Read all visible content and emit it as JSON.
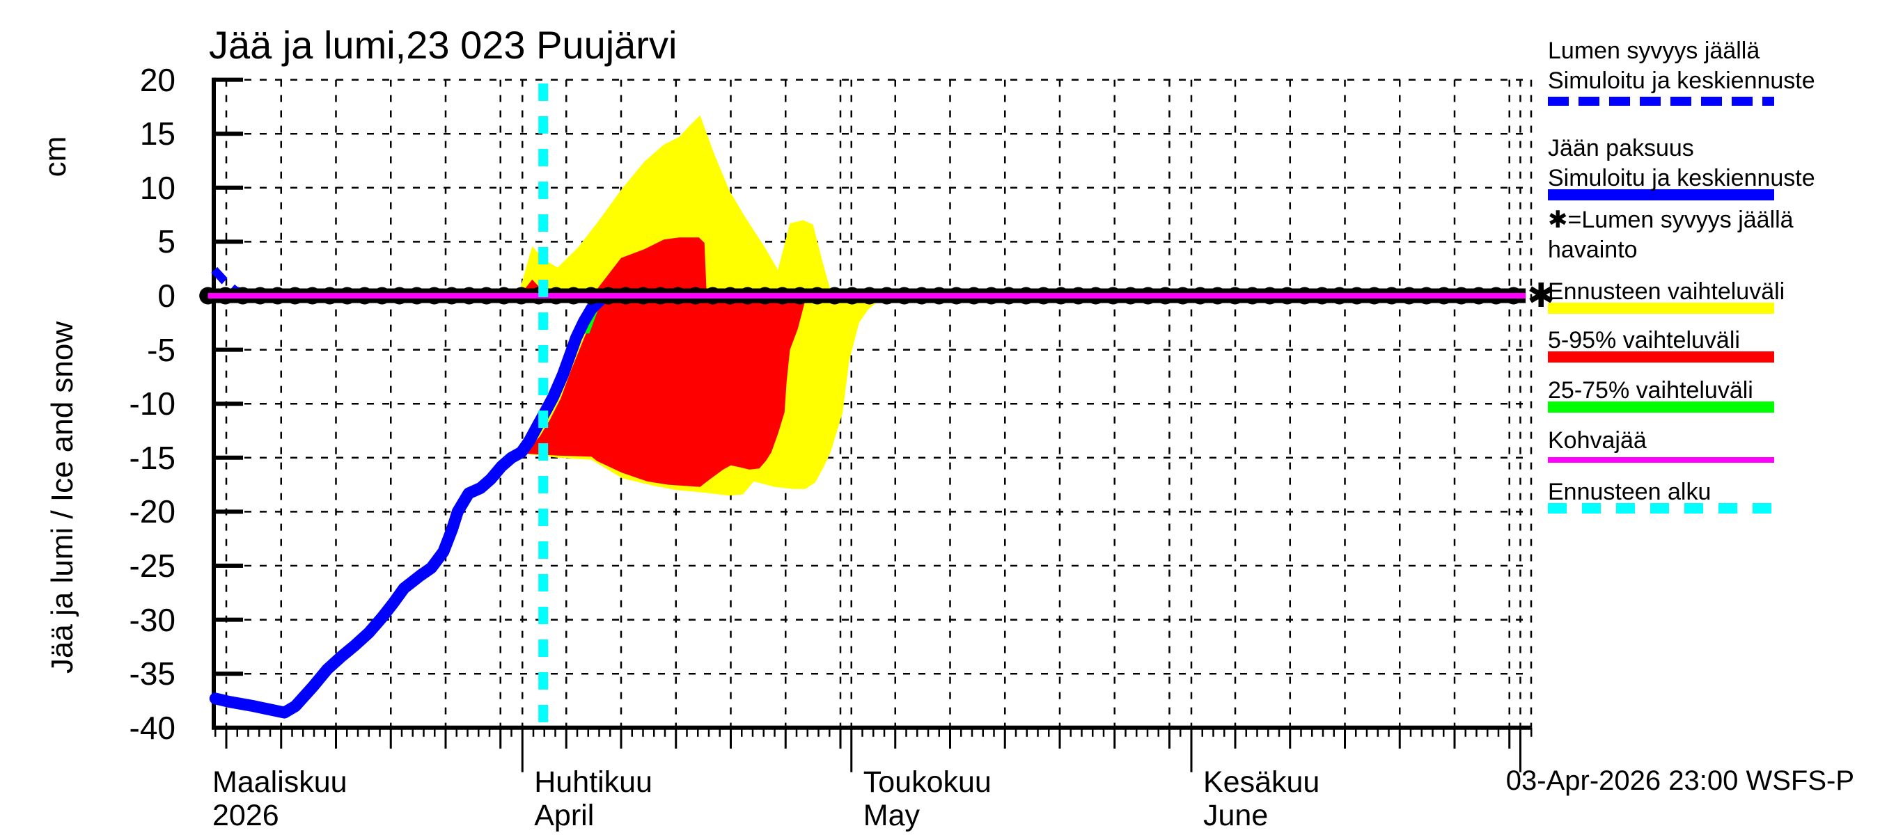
{
  "title": "Jää ja lumi,23 023 Puujärvi",
  "y_axis": {
    "label": "Jää ja lumi / Ice and snow",
    "unit": "cm",
    "tick_values": [
      20,
      15,
      10,
      5,
      0,
      -5,
      -10,
      -15,
      -20,
      -25,
      -30,
      -35,
      -40
    ]
  },
  "x_axis": {
    "start_date": "2026-03-01",
    "months": [
      {
        "name_fi": "Maaliskuu",
        "name_en": "2026",
        "day_offset": 0
      },
      {
        "name_fi": "Huhtikuu",
        "name_en": "April",
        "day_offset": 31
      },
      {
        "name_fi": "Toukokuu",
        "name_en": "May",
        "day_offset": 61
      },
      {
        "name_fi": "Kesäkuu",
        "name_en": "June",
        "day_offset": 92
      }
    ]
  },
  "footer_timestamp": "03-Apr-2026 23:00 WSFS-P",
  "colors": {
    "simulated_line": "#0000ff",
    "forecast_range": "#ffff00",
    "range_5_95": "#ff0000",
    "range_25_75": "#00ff00",
    "kohvajaa": "#ff00ff",
    "forecast_start": "#00ffff",
    "observation": "#000000"
  },
  "legend": [
    {
      "lines": [
        "Lumen syvyys jäällä",
        "Simuloitu ja keskiennuste"
      ],
      "sample": "dashed",
      "color": "#0000ff"
    },
    {
      "lines": [
        "Jään paksuus",
        "Simuloitu ja keskiennuste"
      ],
      "sample": "solid",
      "color": "#0000ff"
    },
    {
      "lines": [
        "✱=Lumen syvyys jäällä",
        "havainto"
      ],
      "sample": "none",
      "color": "#000000"
    },
    {
      "lines": [
        "Ennusteen vaihteluväli"
      ],
      "sample": "solid",
      "color": "#ffff00"
    },
    {
      "lines": [
        "5-95% vaihteluväli"
      ],
      "sample": "solid",
      "color": "#ff0000"
    },
    {
      "lines": [
        "25-75% vaihteluväli"
      ],
      "sample": "solid",
      "color": "#00ff00"
    },
    {
      "lines": [
        "Kohvajää"
      ],
      "sample": "thin",
      "color": "#ff00ff"
    },
    {
      "lines": [
        "Ennusteen alku"
      ],
      "sample": "dashed-wide",
      "color": "#00ffff"
    }
  ],
  "chart_data": {
    "type": "line",
    "title": "Jää ja lumi,23 023 Puujärvi",
    "x_unit": "days since 2026-03-01",
    "ylim": [
      -40,
      20
    ],
    "xlim_days": [
      2.9,
      123
    ],
    "grid": {
      "y_step_cm": 5,
      "x_step_days": 5
    },
    "forecast_start_day": 32.9,
    "ice_thickness_simulated": [
      [
        3.0,
        -37.3
      ],
      [
        4.3,
        -37.6
      ],
      [
        6.5,
        -38.0
      ],
      [
        9.3,
        -38.6
      ],
      [
        10.3,
        -38.0
      ],
      [
        11.9,
        -36.2
      ],
      [
        13.2,
        -34.6
      ],
      [
        14.5,
        -33.4
      ],
      [
        15.7,
        -32.4
      ],
      [
        17.0,
        -31.2
      ],
      [
        18.2,
        -29.8
      ],
      [
        19.2,
        -28.5
      ],
      [
        20.2,
        -27.1
      ],
      [
        21.7,
        -25.9
      ],
      [
        22.7,
        -25.2
      ],
      [
        23.8,
        -23.7
      ],
      [
        24.6,
        -21.6
      ],
      [
        25.1,
        -20.0
      ],
      [
        26.1,
        -18.3
      ],
      [
        27.2,
        -17.8
      ],
      [
        28.1,
        -17.0
      ],
      [
        29.1,
        -15.8
      ],
      [
        30.0,
        -15.0
      ],
      [
        30.9,
        -14.5
      ],
      [
        31.6,
        -13.5
      ],
      [
        32.4,
        -12.0
      ],
      [
        33.0,
        -10.9
      ],
      [
        33.8,
        -9.4
      ],
      [
        34.7,
        -7.3
      ],
      [
        35.3,
        -5.6
      ],
      [
        35.9,
        -3.9
      ],
      [
        36.6,
        -2.4
      ],
      [
        37.3,
        -1.2
      ],
      [
        38.1,
        -0.4
      ]
    ],
    "snow_depth_on_ice_simulated_start": [
      [
        2.9,
        2.4
      ],
      [
        3.8,
        1.4
      ],
      [
        4.8,
        0.5
      ],
      [
        6.0,
        0.1
      ]
    ],
    "snow_depth_observations": {
      "value_cm": 0,
      "from_day": 2.9,
      "to_day": 122.8
    },
    "kohvajaa_level": {
      "value_cm": 0,
      "from_day": 2.9,
      "to_day": 122.8
    },
    "areas": {
      "forecast_range_above_zero_upper": [
        [
          30.7,
          0.3
        ],
        [
          31.9,
          4.6
        ],
        [
          32.9,
          3.4
        ],
        [
          34.2,
          2.6
        ],
        [
          36.1,
          4.5
        ],
        [
          38.0,
          7.0
        ],
        [
          40.0,
          9.8
        ],
        [
          42.1,
          12.4
        ],
        [
          43.9,
          14.0
        ],
        [
          45.3,
          14.7
        ],
        [
          46.2,
          15.7
        ],
        [
          47.2,
          16.7
        ],
        [
          48.5,
          13.1
        ],
        [
          49.9,
          9.7
        ],
        [
          51.3,
          7.3
        ],
        [
          53.1,
          4.5
        ],
        [
          54.3,
          2.4
        ],
        [
          55.4,
          6.7
        ],
        [
          56.6,
          7.0
        ],
        [
          57.5,
          6.6
        ],
        [
          58.4,
          3.0
        ],
        [
          59.1,
          0.5
        ]
      ],
      "range_5_95_above_zero_upper": [
        [
          37.5,
          0.2
        ],
        [
          40.0,
          3.5
        ],
        [
          42.1,
          4.3
        ],
        [
          43.9,
          5.2
        ],
        [
          45.3,
          5.4
        ],
        [
          47.1,
          5.4
        ],
        [
          47.6,
          4.9
        ],
        [
          47.8,
          0.2
        ]
      ],
      "range_5_95_bump_before_forecast": [
        [
          30.8,
          0.1
        ],
        [
          31.9,
          1.5
        ],
        [
          33.2,
          0.1
        ]
      ],
      "forecast_range_below_zero_polygon": [
        [
          37.5,
          -0.2
        ],
        [
          36.7,
          -2.5
        ],
        [
          35.9,
          -4.2
        ],
        [
          35.1,
          -6.5
        ],
        [
          34.2,
          -9.0
        ],
        [
          33.2,
          -11.0
        ],
        [
          32.3,
          -12.5
        ],
        [
          31.4,
          -13.8
        ],
        [
          30.9,
          -14.6
        ],
        [
          34.2,
          -15.0
        ],
        [
          37.3,
          -15.2
        ],
        [
          40.1,
          -16.9
        ],
        [
          43.0,
          -17.6
        ],
        [
          45.1,
          -18.0
        ],
        [
          47.3,
          -18.2
        ],
        [
          49.8,
          -18.5
        ],
        [
          51.1,
          -18.4
        ],
        [
          52.1,
          -17.2
        ],
        [
          54.0,
          -17.7
        ],
        [
          55.7,
          -17.9
        ],
        [
          56.8,
          -17.9
        ],
        [
          57.7,
          -17.3
        ],
        [
          58.5,
          -15.8
        ],
        [
          59.1,
          -14.5
        ],
        [
          60.2,
          -10.8
        ],
        [
          60.8,
          -6.0
        ],
        [
          61.7,
          -2.5
        ],
        [
          62.5,
          -1.3
        ],
        [
          63.8,
          -0.2
        ]
      ],
      "range_5_95_below_zero_polygon": [
        [
          38.3,
          -0.3
        ],
        [
          37.7,
          -1.5
        ],
        [
          37.0,
          -3.0
        ],
        [
          36.4,
          -4.5
        ],
        [
          35.4,
          -7.0
        ],
        [
          34.5,
          -9.5
        ],
        [
          33.5,
          -11.5
        ],
        [
          32.6,
          -13.0
        ],
        [
          31.6,
          -14.2
        ],
        [
          31.0,
          -14.6
        ],
        [
          34.2,
          -14.8
        ],
        [
          37.3,
          -14.9
        ],
        [
          37.8,
          -15.3
        ],
        [
          40.1,
          -16.4
        ],
        [
          42.4,
          -17.2
        ],
        [
          44.3,
          -17.5
        ],
        [
          47.2,
          -17.7
        ],
        [
          48.1,
          -17.0
        ],
        [
          49.3,
          -16.1
        ],
        [
          50.0,
          -15.7
        ],
        [
          50.9,
          -15.9
        ],
        [
          51.7,
          -16.1
        ],
        [
          52.6,
          -16.0
        ],
        [
          53.2,
          -15.3
        ],
        [
          53.7,
          -14.5
        ],
        [
          54.3,
          -12.8
        ],
        [
          54.9,
          -10.8
        ],
        [
          55.1,
          -7.9
        ],
        [
          55.4,
          -5.0
        ],
        [
          56.1,
          -3.1
        ],
        [
          56.8,
          -0.4
        ]
      ],
      "range_25_75_visible_sliver": [
        [
          37.1,
          -3.5
        ],
        [
          37.8,
          -1.6
        ],
        [
          38.35,
          -0.25
        ],
        [
          37.9,
          -0.25
        ],
        [
          37.2,
          -1.6
        ],
        [
          36.5,
          -3.5
        ]
      ]
    }
  }
}
